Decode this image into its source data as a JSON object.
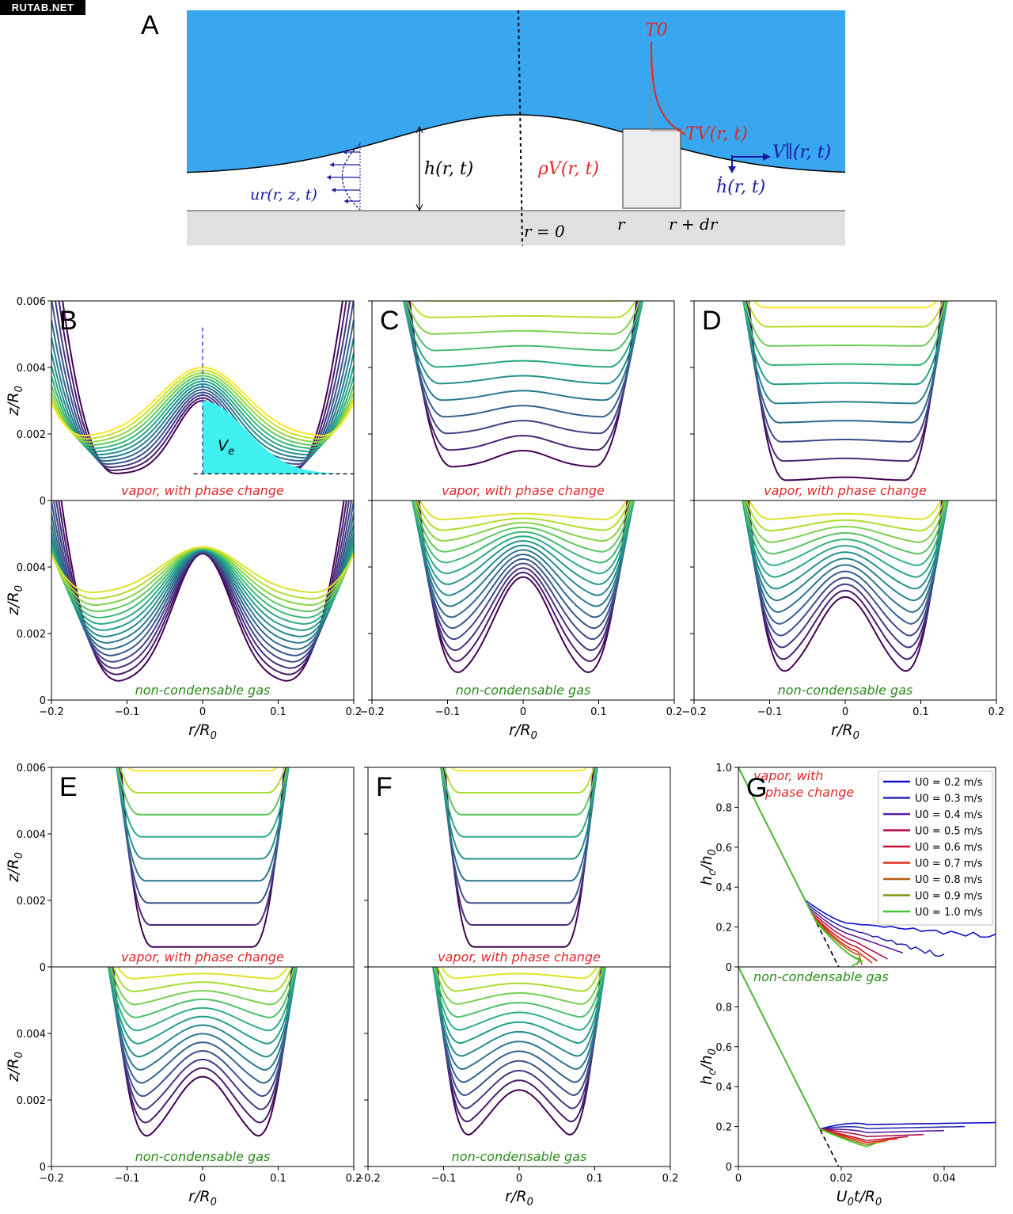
{
  "watermark": "RUTAB.NET",
  "panel_a": {
    "label": "A",
    "T0": "T0",
    "TV": "TV(r, t)",
    "Vpar": "V∥(r, t)",
    "hdot": "ḣ(r, t)",
    "h": "h(r, t)",
    "rho": "ρV(r, t)",
    "ur": "ur(r, z, t)",
    "r0": "r = 0",
    "r": "r",
    "rdr": "r + dr",
    "colors": {
      "liquid": "#39a6f0",
      "solid": "#e0e0e0",
      "red": "#e0282a",
      "blue": "#1a1aa0"
    }
  },
  "labels": {
    "vapor": "vapor, with phase change",
    "gas": "non-condensable gas",
    "Ve": "V",
    "Ve_sub": "e",
    "zR0": "z/R",
    "zR0_sub": "0",
    "rR0": "r/R",
    "rR0_sub": "0",
    "hch0": "h",
    "hch0_c": "c",
    "hch0_mid": "/h",
    "hch0_0": "0",
    "U0tR0": "U",
    "U0tR0_0": "0",
    "U0tR0_mid": "t/R",
    "U0tR0_sub": "0",
    "G_vapor_1": "vapor, with",
    "G_vapor_2": "phase change"
  },
  "chart_data": [
    {
      "panel": "B",
      "type": "line",
      "subtype": "profiles",
      "xlim": [
        -0.2,
        0.2
      ],
      "ylim": [
        0,
        0.006
      ],
      "top": {
        "caption": "vapor, with phase change",
        "center": [
          0.003,
          0.004
        ],
        "rim": [
          0.0008,
          0.0019
        ],
        "rim_r": 0.19,
        "n_curves": 13
      },
      "bottom": {
        "caption": "non-condensable gas",
        "center": [
          0.0044,
          0.0046
        ],
        "rim": [
          0.0005,
          0.0032
        ],
        "rim_r": 0.19,
        "n_curves": 15
      },
      "annotation": "Ve"
    },
    {
      "panel": "C",
      "type": "line",
      "subtype": "profiles",
      "xlim": [
        -0.2,
        0.2
      ],
      "ylim": [
        0,
        0.006
      ],
      "top": {
        "caption": "vapor, with phase change",
        "center": [
          0.0015,
          0.006
        ],
        "rim": [
          0.001,
          0.006
        ],
        "rim_r": 0.155,
        "n_curves": 11
      },
      "bottom": {
        "caption": "non-condensable gas",
        "center": [
          0.0037,
          0.0056
        ],
        "rim": [
          0.0005,
          0.0054
        ],
        "rim_r": 0.14,
        "n_curves": 15
      }
    },
    {
      "panel": "D",
      "type": "line",
      "subtype": "profiles",
      "xlim": [
        -0.2,
        0.2
      ],
      "ylim": [
        0,
        0.006
      ],
      "top": {
        "caption": "vapor, with phase change",
        "center": [
          0.0007,
          0.0058
        ],
        "rim": [
          0.0006,
          0.0058
        ],
        "rim_r": 0.13,
        "n_curves": 10
      },
      "bottom": {
        "caption": "non-condensable gas",
        "center": [
          0.0031,
          0.0056
        ],
        "rim": [
          0.0005,
          0.0054
        ],
        "rim_r": 0.13,
        "n_curves": 14
      }
    },
    {
      "panel": "E",
      "type": "line",
      "subtype": "profiles",
      "xlim": [
        -0.2,
        0.2
      ],
      "ylim": [
        0,
        0.006
      ],
      "top": {
        "caption": "vapor, with phase change",
        "center": [
          0.0006,
          0.0059
        ],
        "rim": [
          0.0006,
          0.0059
        ],
        "rim_r": 0.11,
        "n_curves": 9
      },
      "bottom": {
        "caption": "non-condensable gas",
        "center": [
          0.0027,
          0.0058
        ],
        "rim": [
          0.0005,
          0.0056
        ],
        "rim_r": 0.12,
        "n_curves": 13
      }
    },
    {
      "panel": "F",
      "type": "line",
      "subtype": "profiles",
      "xlim": [
        -0.2,
        0.2
      ],
      "ylim": [
        0,
        0.006
      ],
      "top": {
        "caption": "vapor, with phase change",
        "center": [
          0.0006,
          0.0059
        ],
        "rim": [
          0.0006,
          0.0059
        ],
        "rim_r": 0.1,
        "n_curves": 9
      },
      "bottom": {
        "caption": "non-condensable gas",
        "center": [
          0.0023,
          0.0058
        ],
        "rim": [
          0.0005,
          0.0056
        ],
        "rim_r": 0.11,
        "n_curves": 13
      }
    },
    {
      "panel": "G",
      "type": "line",
      "xlim": [
        0,
        0.05
      ],
      "ylim": [
        0,
        1
      ],
      "xticks": [
        0,
        0.02,
        0.04
      ],
      "yticks": [
        0,
        0.2,
        0.4,
        0.6,
        0.8,
        1.0
      ],
      "xlabel": "U0t/R0",
      "ylabel": "hc/h0",
      "legend": [
        "U0 = 0.2 m/s",
        "U0 = 0.3 m/s",
        "U0 = 0.4 m/s",
        "U0 = 0.5 m/s",
        "U0 = 0.6 m/s",
        "U0 = 0.7 m/s",
        "U0 = 0.8 m/s",
        "U0 = 0.9 m/s",
        "U0 = 1.0 m/s"
      ],
      "legend_colors": [
        "#1010c8",
        "#2a2ab0",
        "#5a1e9c",
        "#b0104a",
        "#c8102c",
        "#e02a18",
        "#b85a10",
        "#7a9a10",
        "#40c830"
      ],
      "top_caption": "vapor, with phase change",
      "bottom_caption": "non-condensable gas",
      "top_series": [
        {
          "U0": 0.2,
          "knee": [
            0.018,
            0.22
          ],
          "end": [
            0.05,
            0.15
          ],
          "noise": true
        },
        {
          "U0": 0.3,
          "knee": [
            0.0185,
            0.19
          ],
          "end": [
            0.04,
            0.05
          ],
          "noise": true
        },
        {
          "U0": 0.4,
          "knee": [
            0.019,
            0.16
          ],
          "end": [
            0.032,
            0.07
          ]
        },
        {
          "U0": 0.5,
          "knee": [
            0.0195,
            0.13
          ],
          "end": [
            0.029,
            0.04
          ]
        },
        {
          "U0": 0.6,
          "knee": [
            0.02,
            0.1
          ],
          "end": [
            0.027,
            0.03
          ]
        },
        {
          "U0": 0.7,
          "knee": [
            0.02,
            0.08
          ],
          "end": [
            0.026,
            0.02
          ]
        },
        {
          "U0": 0.8,
          "knee": [
            0.0205,
            0.06
          ],
          "end": [
            0.024,
            0.01
          ]
        },
        {
          "U0": 0.9,
          "knee": [
            0.0205,
            0.04
          ],
          "end": [
            0.023,
            0.01
          ]
        },
        {
          "U0": 1.0,
          "knee": [
            0.021,
            0.03
          ],
          "end": [
            0.022,
            0.005
          ]
        }
      ],
      "bottom_series": [
        {
          "U0": 0.2,
          "min": [
            0.022,
            0.21
          ],
          "end": [
            0.05,
            0.22
          ]
        },
        {
          "U0": 0.3,
          "min": [
            0.022,
            0.19
          ],
          "end": [
            0.044,
            0.2
          ]
        },
        {
          "U0": 0.4,
          "min": [
            0.022,
            0.17
          ],
          "end": [
            0.04,
            0.18
          ]
        },
        {
          "U0": 0.5,
          "min": [
            0.022,
            0.15
          ],
          "end": [
            0.036,
            0.16
          ]
        },
        {
          "U0": 0.6,
          "min": [
            0.022,
            0.13
          ],
          "end": [
            0.033,
            0.15
          ]
        },
        {
          "U0": 0.7,
          "min": [
            0.022,
            0.12
          ],
          "end": [
            0.031,
            0.14
          ]
        },
        {
          "U0": 0.8,
          "min": [
            0.022,
            0.11
          ],
          "end": [
            0.029,
            0.13
          ]
        },
        {
          "U0": 0.9,
          "min": [
            0.022,
            0.1
          ],
          "end": [
            0.027,
            0.12
          ]
        },
        {
          "U0": 1.0,
          "min": [
            0.022,
            0.1
          ],
          "end": [
            0.026,
            0.11
          ]
        }
      ]
    }
  ]
}
